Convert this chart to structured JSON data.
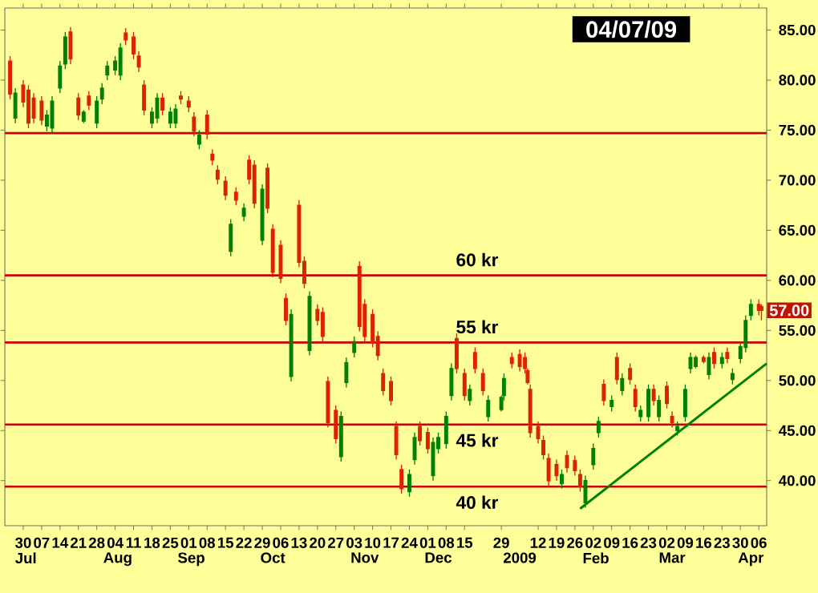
{
  "chart_data": {
    "type": "candlestick",
    "x": [
      "2008-06-25",
      "2008-06-27",
      "2008-06-30",
      "2008-07-02",
      "2008-07-04",
      "2008-07-07",
      "2008-07-09",
      "2008-07-11",
      "2008-07-14",
      "2008-07-16",
      "2008-07-18",
      "2008-07-21",
      "2008-07-23",
      "2008-07-25",
      "2008-07-28",
      "2008-07-30",
      "2008-08-01",
      "2008-08-04",
      "2008-08-06",
      "2008-08-08",
      "2008-08-11",
      "2008-08-13",
      "2008-08-15",
      "2008-08-18",
      "2008-08-20",
      "2008-08-22",
      "2008-08-25",
      "2008-08-27",
      "2008-08-29",
      "2008-09-01",
      "2008-09-03",
      "2008-09-05",
      "2008-09-08",
      "2008-09-10",
      "2008-09-12",
      "2008-09-15",
      "2008-09-17",
      "2008-09-19",
      "2008-09-22",
      "2008-09-24",
      "2008-09-26",
      "2008-09-29",
      "2008-10-01",
      "2008-10-03",
      "2008-10-06",
      "2008-10-08",
      "2008-10-10",
      "2008-10-13",
      "2008-10-15",
      "2008-10-17",
      "2008-10-20",
      "2008-10-22",
      "2008-10-24",
      "2008-10-27",
      "2008-10-29",
      "2008-10-31",
      "2008-11-03",
      "2008-11-05",
      "2008-11-07",
      "2008-11-10",
      "2008-11-12",
      "2008-11-14",
      "2008-11-17",
      "2008-11-19",
      "2008-11-21",
      "2008-11-24",
      "2008-11-26",
      "2008-11-28",
      "2008-12-01",
      "2008-12-03",
      "2008-12-05",
      "2008-12-08",
      "2008-12-10",
      "2008-12-12",
      "2008-12-15",
      "2008-12-17",
      "2008-12-19",
      "2008-12-22",
      "2008-12-24",
      "2008-12-29",
      "2008-12-30",
      "2009-01-02",
      "2009-01-05",
      "2009-01-07",
      "2009-01-08",
      "2009-01-09",
      "2009-01-12",
      "2009-01-14",
      "2009-01-16",
      "2009-01-19",
      "2009-01-21",
      "2009-01-23",
      "2009-01-26",
      "2009-01-28",
      "2009-01-30",
      "2009-02-02",
      "2009-02-04",
      "2009-02-06",
      "2009-02-09",
      "2009-02-11",
      "2009-02-13",
      "2009-02-16",
      "2009-02-18",
      "2009-02-20",
      "2009-02-23",
      "2009-02-25",
      "2009-02-27",
      "2009-03-02",
      "2009-03-04",
      "2009-03-06",
      "2009-03-09",
      "2009-03-11",
      "2009-03-13",
      "2009-03-16",
      "2009-03-18",
      "2009-03-20",
      "2009-03-23",
      "2009-03-25",
      "2009-03-27",
      "2009-03-30",
      "2009-04-01",
      "2009-04-03",
      "2009-04-06",
      "2009-04-07"
    ],
    "ohlc": [
      [
        81.9,
        82.4,
        78.1,
        78.6
      ],
      [
        76.2,
        79.2,
        75.7,
        78.7
      ],
      [
        79.5,
        80,
        77.3,
        77.8
      ],
      [
        79.0,
        79.5,
        75.2,
        75.7
      ],
      [
        78.2,
        78.7,
        75.7,
        76.2
      ],
      [
        77.9,
        78.4,
        75.5,
        76.0
      ],
      [
        75.4,
        77,
        74.9,
        76.5
      ],
      [
        75.2,
        78.4,
        74.7,
        77.9
      ],
      [
        79.2,
        81.9,
        78.7,
        81.4
      ],
      [
        81.6,
        84.8,
        81.1,
        84.3
      ],
      [
        84.8,
        85.3,
        81.6,
        82.1
      ],
      [
        78.2,
        78.7,
        76,
        76.5
      ],
      [
        75.9,
        77,
        75.7,
        76.8
      ],
      [
        78.4,
        78.9,
        77,
        77.5
      ],
      [
        75.7,
        78.4,
        75.2,
        77.9
      ],
      [
        78.1,
        79.7,
        77.6,
        79.2
      ],
      [
        80.5,
        81.9,
        80,
        81.4
      ],
      [
        81.0,
        82.4,
        80.5,
        81.9
      ],
      [
        80.5,
        83.7,
        80,
        83.2
      ],
      [
        84.7,
        85.2,
        83.5,
        84.0
      ],
      [
        84.3,
        84.8,
        82.1,
        82.6
      ],
      [
        82.4,
        82.9,
        80.8,
        81.3
      ],
      [
        79.5,
        80,
        76.5,
        77.0
      ],
      [
        75.7,
        77.3,
        75.2,
        76.8
      ],
      [
        76.2,
        78.7,
        75.7,
        78.2
      ],
      [
        78.2,
        78.7,
        76.5,
        77.0
      ],
      [
        75.7,
        77.3,
        75.2,
        76.8
      ],
      [
        75.7,
        77.6,
        75.2,
        77.1
      ],
      [
        78.4,
        78.9,
        77.6,
        78.1
      ],
      [
        77.9,
        78.4,
        76.8,
        77.3
      ],
      [
        76.3,
        76.8,
        74.4,
        74.9
      ],
      [
        73.6,
        75,
        73.1,
        74.5
      ],
      [
        76.5,
        77,
        74.1,
        74.6
      ],
      [
        72.6,
        73.1,
        71.5,
        72.0
      ],
      [
        71.0,
        71.5,
        69.6,
        70.1
      ],
      [
        69.9,
        70.4,
        68,
        68.5
      ],
      [
        62.9,
        66.1,
        62.4,
        65.6
      ],
      [
        68.8,
        69.3,
        67.5,
        68.0
      ],
      [
        66.4,
        67.7,
        65.9,
        67.2
      ],
      [
        72.0,
        72.5,
        69.6,
        70.1
      ],
      [
        71.5,
        72,
        67.2,
        67.7
      ],
      [
        64.0,
        69.6,
        63.5,
        69.1
      ],
      [
        71.2,
        71.7,
        66.7,
        67.2
      ],
      [
        65.1,
        65.6,
        60.3,
        60.8
      ],
      [
        63.5,
        64,
        59.7,
        60.2
      ],
      [
        58.2,
        58.7,
        55.5,
        56.0
      ],
      [
        50.4,
        57.1,
        49.9,
        56.6
      ],
      [
        67.5,
        68,
        61.3,
        61.8
      ],
      [
        61.9,
        62.4,
        59.2,
        59.7
      ],
      [
        53.0,
        58.9,
        52.5,
        58.4
      ],
      [
        57.1,
        57.6,
        55.5,
        56.0
      ],
      [
        56.8,
        57.3,
        53.9,
        54.4
      ],
      [
        49.9,
        50.4,
        45.3,
        45.8
      ],
      [
        47.0,
        47.5,
        43.7,
        44.2
      ],
      [
        42.4,
        46.9,
        41.9,
        46.4
      ],
      [
        49.8,
        52.3,
        49.3,
        51.8
      ],
      [
        52.8,
        54.4,
        52.3,
        53.9
      ],
      [
        61.4,
        61.9,
        54.9,
        55.4
      ],
      [
        57.6,
        58.1,
        53.9,
        54.4
      ],
      [
        56.6,
        57.1,
        53.3,
        53.8
      ],
      [
        54.4,
        54.9,
        52,
        52.5
      ],
      [
        50.7,
        51.2,
        48.5,
        49.0
      ],
      [
        49.9,
        50.4,
        47.5,
        48.0
      ],
      [
        45.4,
        45.9,
        42.1,
        42.6
      ],
      [
        41.1,
        41.6,
        38.7,
        39.2
      ],
      [
        38.9,
        41.1,
        38.4,
        40.6
      ],
      [
        42.1,
        44.8,
        41.6,
        44.3
      ],
      [
        45.4,
        45.9,
        43.5,
        44.0
      ],
      [
        44.8,
        45.3,
        42.7,
        43.2
      ],
      [
        40.5,
        44.3,
        40,
        43.8
      ],
      [
        43.2,
        44.8,
        42.7,
        44.3
      ],
      [
        43.7,
        46.9,
        43.2,
        46.4
      ],
      [
        48.5,
        51.7,
        48,
        51.2
      ],
      [
        54.2,
        54.7,
        50.7,
        51.2
      ],
      [
        50.7,
        51.2,
        48,
        48.5
      ],
      [
        48.0,
        49.6,
        47.5,
        49.1
      ],
      [
        52.8,
        53.3,
        50.7,
        51.2
      ],
      [
        50.7,
        51.2,
        48.5,
        49.0
      ],
      [
        46.4,
        48.5,
        45.9,
        48.0
      ],
      [
        47.1,
        48.5,
        46.9,
        48.3
      ],
      [
        48.5,
        50.7,
        48,
        50.2
      ],
      [
        52.3,
        52.8,
        51.2,
        51.7
      ],
      [
        52.6,
        53.1,
        50.9,
        51.4
      ],
      [
        52.3,
        52.8,
        50.7,
        51.2
      ],
      [
        51.0,
        51.2,
        49.6,
        49.8
      ],
      [
        49.1,
        49.6,
        44.3,
        44.8
      ],
      [
        45.4,
        45.9,
        43.7,
        44.2
      ],
      [
        44.0,
        44.5,
        42.1,
        42.6
      ],
      [
        42.2,
        42.7,
        39.5,
        40.0
      ],
      [
        41.6,
        42.1,
        40,
        40.5
      ],
      [
        39.7,
        41.1,
        39.2,
        40.6
      ],
      [
        42.5,
        43,
        40.8,
        41.3
      ],
      [
        42.0,
        42.5,
        40.5,
        41.0
      ],
      [
        40.6,
        41.1,
        38.9,
        39.4
      ],
      [
        37.8,
        40.5,
        37.3,
        40.0
      ],
      [
        41.6,
        43.7,
        41.1,
        43.2
      ],
      [
        44.8,
        46.4,
        44.3,
        45.9
      ],
      [
        49.6,
        50.1,
        47.5,
        48.0
      ],
      [
        47.4,
        48.5,
        46.9,
        48.0
      ],
      [
        52.3,
        52.8,
        49.6,
        50.1
      ],
      [
        49.0,
        50.7,
        48.5,
        50.2
      ],
      [
        51.2,
        51.7,
        49.6,
        50.1
      ],
      [
        49.1,
        49.6,
        46.9,
        47.4
      ],
      [
        46.4,
        47.5,
        45.9,
        47.0
      ],
      [
        46.4,
        49.6,
        45.9,
        49.1
      ],
      [
        49.1,
        49.6,
        47.5,
        48.0
      ],
      [
        46.4,
        48.5,
        45.9,
        48.0
      ],
      [
        49.4,
        49.9,
        47.2,
        47.7
      ],
      [
        46.4,
        46.9,
        45.3,
        45.8
      ],
      [
        45.0,
        45.9,
        44.5,
        45.4
      ],
      [
        46.4,
        49.6,
        45.9,
        49.1
      ],
      [
        51.2,
        52.8,
        50.7,
        52.3
      ],
      [
        51.4,
        52.5,
        51.2,
        52.3
      ],
      [
        52.3,
        52.5,
        51.7,
        51.9
      ],
      [
        50.6,
        52.8,
        50.1,
        52.3
      ],
      [
        52.8,
        53.3,
        51.2,
        51.7
      ],
      [
        51.7,
        52.8,
        51.2,
        52.3
      ],
      [
        52.8,
        53.3,
        51.7,
        52.2
      ],
      [
        50.1,
        51.2,
        49.6,
        50.7
      ],
      [
        52.2,
        53.9,
        51.7,
        53.4
      ],
      [
        53.3,
        56.5,
        52.8,
        56.0
      ],
      [
        56.5,
        58.1,
        56,
        57.6
      ],
      [
        57.6,
        58.1,
        56.5,
        57.0
      ],
      [
        57.4,
        57.6,
        56,
        57.0
      ]
    ],
    "series": [
      {
        "type": "line",
        "x": [
          "2009-01-28",
          "2009-04-09"
        ],
        "values": [
          37.2,
          51.7
        ],
        "color": "#008000"
      }
    ],
    "xlim": [
      "2008-06-23",
      "2009-04-09"
    ],
    "x2lim": [
      "2008-06-23",
      "2009-04-09"
    ],
    "ylim": [
      35.5,
      87.2
    ],
    "xticks": [
      {
        "value": "2008-06-30",
        "label": "30"
      },
      {
        "value": "2008-07-07",
        "label": "07"
      },
      {
        "value": "2008-07-14",
        "label": "14"
      },
      {
        "value": "2008-07-21",
        "label": "21"
      },
      {
        "value": "2008-07-28",
        "label": "28"
      },
      {
        "value": "2008-08-04",
        "label": "04"
      },
      {
        "value": "2008-08-11",
        "label": "11"
      },
      {
        "value": "2008-08-18",
        "label": "18"
      },
      {
        "value": "2008-08-25",
        "label": "25"
      },
      {
        "value": "2008-09-01",
        "label": "01"
      },
      {
        "value": "2008-09-08",
        "label": "08"
      },
      {
        "value": "2008-09-15",
        "label": "15"
      },
      {
        "value": "2008-09-22",
        "label": "22"
      },
      {
        "value": "2008-09-29",
        "label": "29"
      },
      {
        "value": "2008-10-06",
        "label": "06"
      },
      {
        "value": "2008-10-13",
        "label": "13"
      },
      {
        "value": "2008-10-20",
        "label": "20"
      },
      {
        "value": "2008-10-27",
        "label": "27"
      },
      {
        "value": "2008-11-03",
        "label": "03"
      },
      {
        "value": "2008-11-10",
        "label": "10"
      },
      {
        "value": "2008-11-17",
        "label": "17"
      },
      {
        "value": "2008-11-24",
        "label": "24"
      },
      {
        "value": "2008-12-01",
        "label": "01"
      },
      {
        "value": "2008-12-08",
        "label": "08"
      },
      {
        "value": "2008-12-15",
        "label": "15"
      },
      {
        "value": "2008-12-29",
        "label": "29"
      },
      {
        "value": "2009-01-12",
        "label": "12"
      },
      {
        "value": "2009-01-19",
        "label": "19"
      },
      {
        "value": "2009-01-26",
        "label": "26"
      },
      {
        "value": "2009-02-02",
        "label": "02"
      },
      {
        "value": "2009-02-09",
        "label": "09"
      },
      {
        "value": "2009-02-16",
        "label": "16"
      },
      {
        "value": "2009-02-23",
        "label": "23"
      },
      {
        "value": "2009-03-02",
        "label": "02"
      },
      {
        "value": "2009-03-09",
        "label": "09"
      },
      {
        "value": "2009-03-16",
        "label": "16"
      },
      {
        "value": "2009-03-23",
        "label": "23"
      },
      {
        "value": "2009-03-30",
        "label": "30"
      },
      {
        "value": "2009-04-06",
        "label": "06"
      }
    ],
    "x2ticks": [
      {
        "value": "2008-07-01",
        "label": "Jul"
      },
      {
        "value": "2008-08-05",
        "label": "Aug"
      },
      {
        "value": "2008-09-02",
        "label": "Sep"
      },
      {
        "value": "2008-10-03",
        "label": "Oct"
      },
      {
        "value": "2008-11-07",
        "label": "Nov"
      },
      {
        "value": "2008-12-05",
        "label": "Dec"
      },
      {
        "value": "2009-01-05",
        "label": "2009"
      },
      {
        "value": "2009-02-03",
        "label": "Feb"
      },
      {
        "value": "2009-03-04",
        "label": "Mar"
      },
      {
        "value": "2009-04-03",
        "label": "Apr"
      }
    ],
    "yticks": [
      {
        "value": 40,
        "label": "40.00"
      },
      {
        "value": 45,
        "label": "45.00"
      },
      {
        "value": 50,
        "label": "50.00"
      },
      {
        "value": 55,
        "label": "55.00"
      },
      {
        "value": 60,
        "label": "60.00"
      },
      {
        "value": 65,
        "label": "65.00"
      },
      {
        "value": 70,
        "label": "70.00"
      },
      {
        "value": 75,
        "label": "75.00"
      },
      {
        "value": 80,
        "label": "80.00"
      },
      {
        "value": 85,
        "label": "85.00"
      }
    ],
    "ref_lines": [
      {
        "axis": "y",
        "value": 74.7,
        "color": "#cc0000"
      },
      {
        "axis": "y",
        "value": 60.5,
        "color": "#cc0000",
        "label": "60 kr"
      },
      {
        "axis": "y",
        "value": 53.8,
        "color": "#cc0000",
        "label": "55 kr"
      },
      {
        "axis": "y",
        "value": 45.6,
        "color": "#cc0000",
        "label": "45 kr"
      },
      {
        "axis": "y",
        "value": 39.4,
        "color": "#cc0000",
        "label": "40 kr"
      }
    ],
    "annotations": [
      {
        "text": "57.00",
        "y": 57
      },
      "04/07/09"
    ]
  }
}
